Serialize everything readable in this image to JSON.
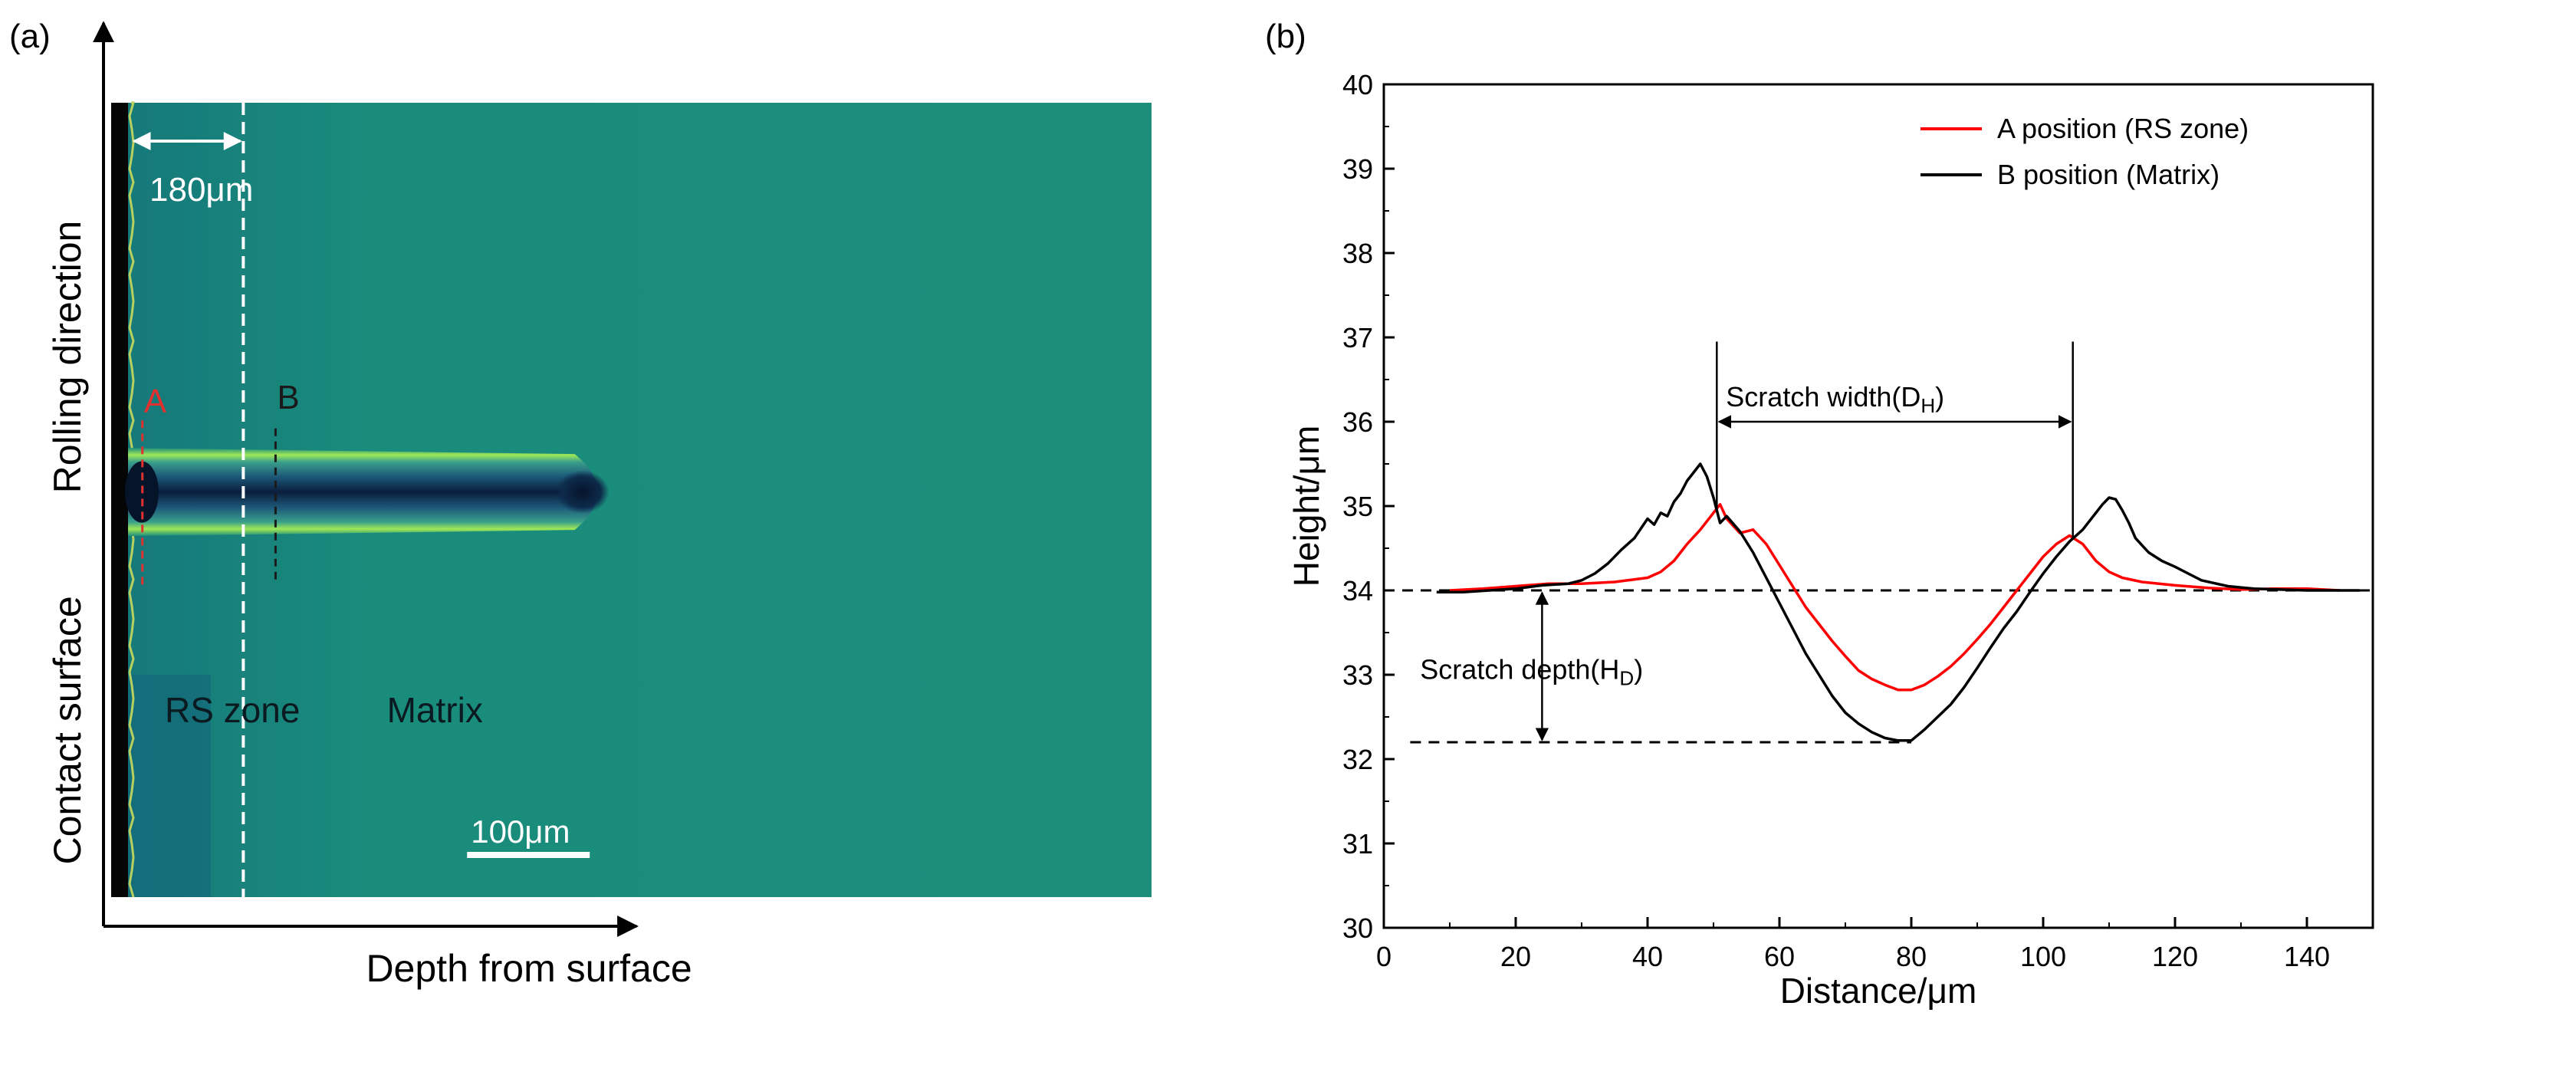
{
  "panel_a": {
    "label": "(a)",
    "y_axis_label_top": "Rolling direction",
    "y_axis_label_bottom": "Contact surface",
    "x_axis_label": "Depth from surface",
    "rs_width_label": "180μm",
    "marker_a": "A",
    "marker_b": "B",
    "zone_rs": "RS zone",
    "zone_matrix": "Matrix",
    "scale_bar": "100μm",
    "colors": {
      "background": "#1a8a7c",
      "groove": "#0d2a4a",
      "rim": "#8ee04a",
      "marker_a": "#e03030",
      "marker_b": "#1a1a1a"
    }
  },
  "panel_b": {
    "label": "(b)",
    "scratch_width_label": "Scratch width(D",
    "scratch_width_sub": "H",
    "scratch_width_close": ")",
    "scratch_depth_label": "Scratch depth(H",
    "scratch_depth_sub": "D",
    "scratch_depth_close": ")"
  },
  "chart_data": {
    "type": "line",
    "title": "",
    "xlabel": "Distance/μm",
    "ylabel": "Height/μm",
    "xlim": [
      0,
      150
    ],
    "ylim": [
      30,
      40
    ],
    "xticks": [
      0,
      20,
      40,
      60,
      80,
      100,
      120,
      140
    ],
    "yticks": [
      30,
      31,
      32,
      33,
      34,
      35,
      36,
      37,
      38,
      39,
      40
    ],
    "grid": false,
    "legend_position": "top-right",
    "reference_lines": [
      {
        "name": "surface-level",
        "y": 34.0,
        "x_range": [
          0,
          150
        ]
      },
      {
        "name": "scratch-bottom",
        "y": 32.2,
        "x_range": [
          4,
          80
        ]
      }
    ],
    "scratch_width_bounds": [
      50.5,
      104.5
    ],
    "series": [
      {
        "name": "A position (RS zone)",
        "color": "#ff0000",
        "x": [
          10,
          15,
          20,
          25,
          30,
          35,
          40,
          42,
          44,
          46,
          48,
          50,
          51,
          52,
          54,
          56,
          58,
          60,
          62,
          64,
          66,
          68,
          70,
          72,
          74,
          76,
          78,
          80,
          82,
          84,
          86,
          88,
          90,
          92,
          94,
          96,
          98,
          100,
          102,
          104,
          106,
          108,
          110,
          112,
          115,
          120,
          125,
          130,
          135,
          140,
          145
        ],
        "y": [
          34.0,
          34.02,
          34.05,
          34.08,
          34.08,
          34.1,
          34.15,
          34.22,
          34.35,
          34.55,
          34.72,
          34.92,
          35.02,
          34.85,
          34.68,
          34.72,
          34.55,
          34.3,
          34.05,
          33.8,
          33.6,
          33.4,
          33.22,
          33.05,
          32.95,
          32.88,
          32.82,
          32.82,
          32.88,
          32.98,
          33.1,
          33.25,
          33.42,
          33.6,
          33.8,
          34.0,
          34.2,
          34.4,
          34.55,
          34.65,
          34.55,
          34.35,
          34.22,
          34.15,
          34.1,
          34.06,
          34.03,
          34.01,
          34.02,
          34.02,
          34.0
        ]
      },
      {
        "name": "B position (Matrix)",
        "color": "#000000",
        "x": [
          8,
          12,
          16,
          20,
          24,
          28,
          30,
          32,
          34,
          36,
          38,
          40,
          41,
          42,
          43,
          44,
          45,
          46,
          47,
          48,
          49,
          50,
          51,
          52,
          54,
          56,
          58,
          60,
          62,
          64,
          66,
          68,
          70,
          72,
          74,
          76,
          78,
          80,
          82,
          84,
          86,
          88,
          90,
          92,
          94,
          96,
          98,
          100,
          102,
          104,
          106,
          107,
          108,
          109,
          110,
          111,
          112,
          113,
          114,
          116,
          118,
          120,
          122,
          124,
          128,
          132,
          136,
          140,
          144,
          148
        ],
        "y": [
          33.98,
          33.98,
          34.0,
          34.02,
          34.06,
          34.08,
          34.12,
          34.2,
          34.32,
          34.48,
          34.62,
          34.85,
          34.78,
          34.92,
          34.88,
          35.05,
          35.15,
          35.3,
          35.4,
          35.5,
          35.35,
          35.1,
          34.8,
          34.88,
          34.7,
          34.45,
          34.15,
          33.85,
          33.55,
          33.25,
          33.0,
          32.75,
          32.55,
          32.42,
          32.32,
          32.25,
          32.22,
          32.22,
          32.35,
          32.5,
          32.65,
          32.85,
          33.08,
          33.32,
          33.55,
          33.75,
          33.98,
          34.2,
          34.4,
          34.58,
          34.72,
          34.82,
          34.92,
          35.02,
          35.1,
          35.08,
          34.95,
          34.8,
          34.62,
          34.45,
          34.35,
          34.28,
          34.2,
          34.12,
          34.05,
          34.02,
          34.01,
          34.0,
          34.0,
          34.0
        ]
      }
    ]
  }
}
